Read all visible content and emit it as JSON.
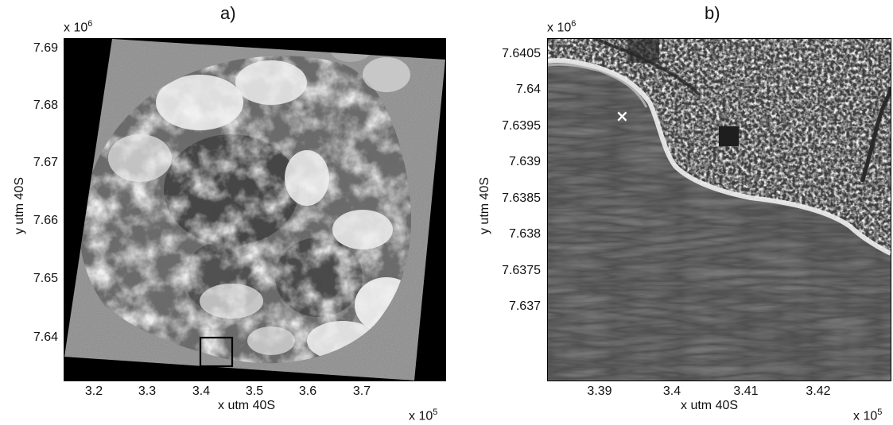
{
  "panel_a": {
    "title": "a)",
    "y_multiplier_base": "x 10",
    "y_multiplier_exp": "6",
    "x_multiplier_base": "x 10",
    "x_multiplier_exp": "5",
    "ylabel": "y utm 40S",
    "xlabel": "x utm 40S",
    "yticks": [
      "7.69",
      "7.68",
      "7.67",
      "7.66",
      "7.65",
      "7.64"
    ],
    "xticks": [
      "3.2",
      "3.3",
      "3.4",
      "3.5",
      "3.6",
      "3.7"
    ]
  },
  "panel_b": {
    "title": "b)",
    "y_multiplier_base": "x 10",
    "y_multiplier_exp": "6",
    "x_multiplier_base": "x 10",
    "x_multiplier_exp": "5",
    "ylabel": "y utm 40S",
    "xlabel": "x utm 40S",
    "yticks": [
      "7.6405",
      "7.64",
      "7.6395",
      "7.639",
      "7.6385",
      "7.638",
      "7.6375",
      "7.637"
    ],
    "xticks": [
      "3.39",
      "3.4",
      "3.41",
      "3.42"
    ],
    "marker_symbol": "×"
  }
}
